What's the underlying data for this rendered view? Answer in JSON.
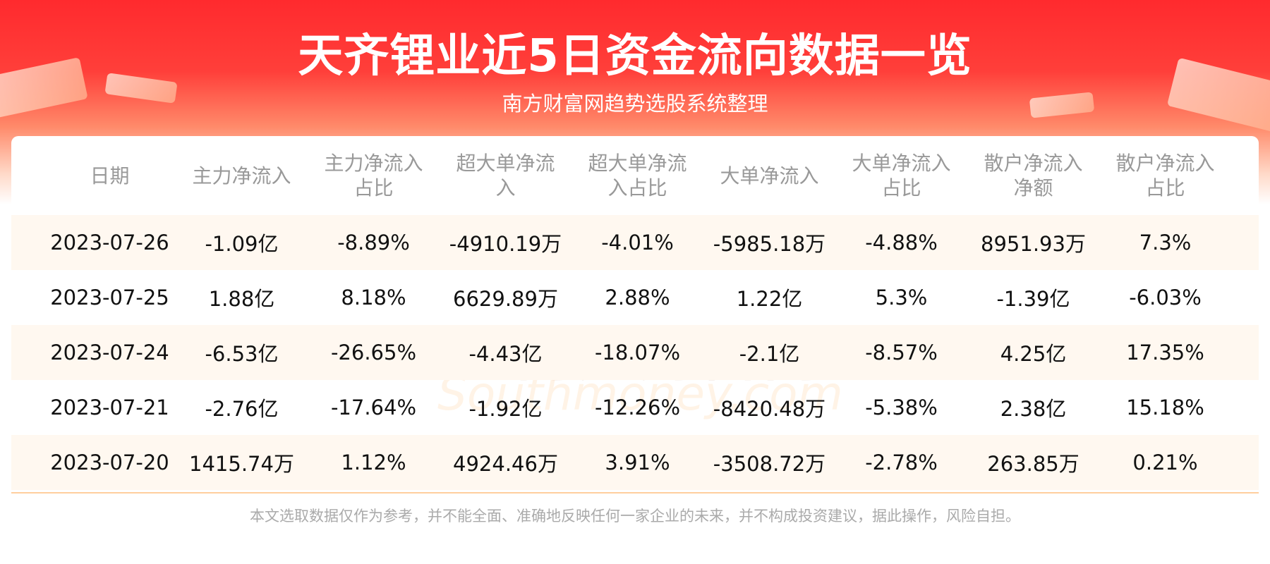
{
  "header": {
    "title": "天齐锂业近5日资金流向数据一览",
    "subtitle": "南方财富网趋势选股系统整理"
  },
  "table": {
    "columns": [
      "日期",
      "主力净流入",
      "主力净流入占比",
      "超大单净流入",
      "超大单净流入占比",
      "大单净流入",
      "大单净流入占比",
      "散户净流入净额",
      "散户净流入占比"
    ],
    "rows": [
      [
        "2023-07-26",
        "-1.09亿",
        "-8.89%",
        "-4910.19万",
        "-4.01%",
        "-5985.18万",
        "-4.88%",
        "8951.93万",
        "7.3%"
      ],
      [
        "2023-07-25",
        "1.88亿",
        "8.18%",
        "6629.89万",
        "2.88%",
        "1.22亿",
        "5.3%",
        "-1.39亿",
        "-6.03%"
      ],
      [
        "2023-07-24",
        "-6.53亿",
        "-26.65%",
        "-4.43亿",
        "-18.07%",
        "-2.1亿",
        "-8.57%",
        "4.25亿",
        "17.35%"
      ],
      [
        "2023-07-21",
        "-2.76亿",
        "-17.64%",
        "-1.92亿",
        "-12.26%",
        "-8420.48万",
        "-5.38%",
        "2.38亿",
        "15.18%"
      ],
      [
        "2023-07-20",
        "1415.74万",
        "1.12%",
        "4924.46万",
        "3.91%",
        "-3508.72万",
        "-2.78%",
        "263.85万",
        "0.21%"
      ]
    ]
  },
  "watermark": {
    "cn": "南方财富网",
    "en": "Southmoney.com"
  },
  "footer": {
    "disclaimer": "本文选取数据仅作为参考，并不能全面、准确地反映任何一家企业的未来，并不构成投资建议，据此操作，风险自担。"
  }
}
